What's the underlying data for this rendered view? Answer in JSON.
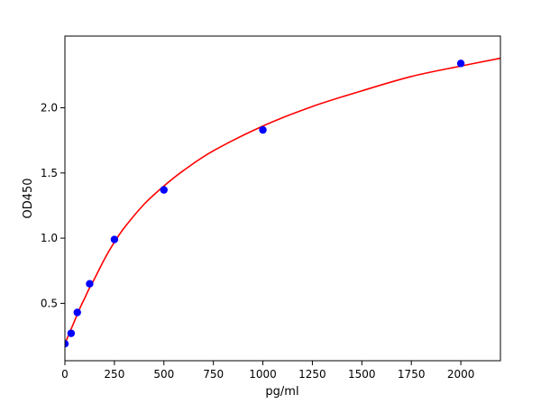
{
  "chart_data": {
    "type": "scatter",
    "xlabel": "pg/ml",
    "ylabel": "OD450",
    "xlim": [
      0,
      2200
    ],
    "ylim": [
      0.06,
      2.55
    ],
    "x_ticks": [
      0,
      250,
      500,
      750,
      1000,
      1250,
      1500,
      1750,
      2000
    ],
    "y_ticks": [
      0.5,
      1.0,
      1.5,
      2.0
    ],
    "x_tick_labels": [
      "0",
      "250",
      "500",
      "750",
      "1000",
      "1250",
      "1500",
      "1750",
      "2000"
    ],
    "y_tick_labels": [
      "0.5",
      "1.0",
      "1.5",
      "2.0"
    ],
    "grid": false,
    "series": [
      {
        "kind": "points",
        "color": "#0000ff",
        "x": [
          0,
          31.25,
          62.5,
          125,
          250,
          500,
          1000,
          2000
        ],
        "y": [
          0.19,
          0.27,
          0.43,
          0.65,
          0.99,
          1.37,
          1.83,
          2.34
        ]
      },
      {
        "kind": "fitted-curve",
        "color": "#ff0000",
        "x": [
          0,
          25,
          50,
          75,
          100,
          125,
          150,
          200,
          250,
          300,
          400,
          500,
          600,
          750,
          1000,
          1250,
          1500,
          1750,
          2000,
          2200
        ],
        "y": [
          0.19,
          0.28,
          0.37,
          0.46,
          0.54,
          0.62,
          0.69,
          0.84,
          0.97,
          1.08,
          1.26,
          1.4,
          1.52,
          1.67,
          1.86,
          2.01,
          2.13,
          2.24,
          2.32,
          2.38
        ]
      }
    ]
  }
}
